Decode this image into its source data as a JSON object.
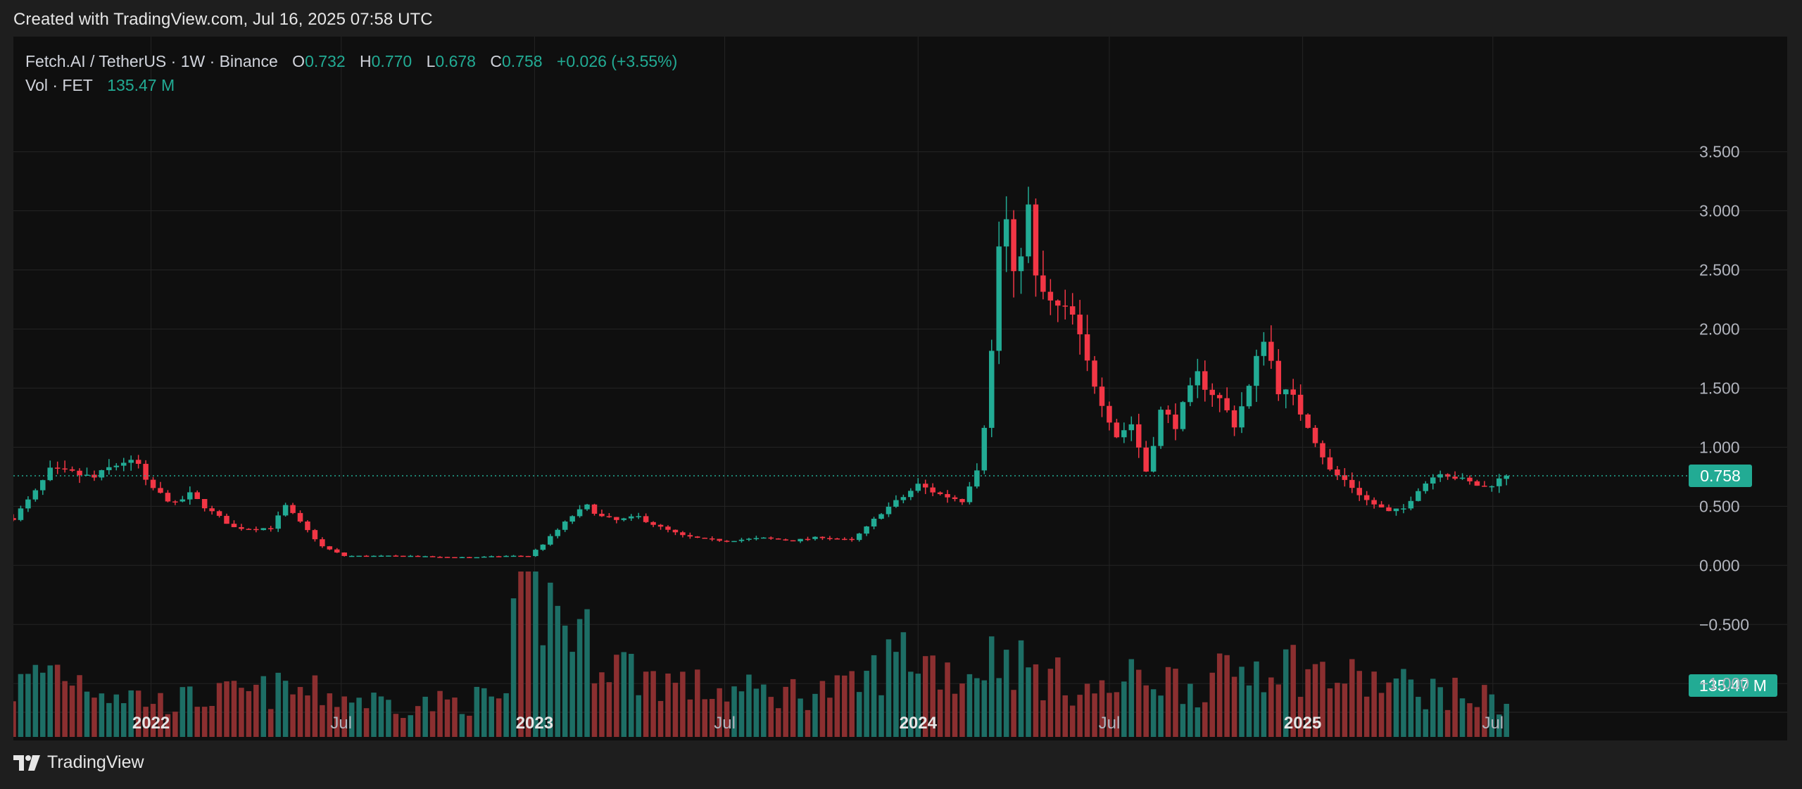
{
  "caption": "Created with TradingView.com, Jul 16, 2025 07:58 UTC",
  "footer_brand": "TradingView",
  "legend": {
    "symbol": "Fetch.AI / TetherUS · 1W · Binance",
    "o_label": "O",
    "o_value": "0.732",
    "h_label": "H",
    "h_value": "0.770",
    "l_label": "L",
    "l_value": "0.678",
    "c_label": "C",
    "c_value": "0.758",
    "change": "+0.026 (+3.55%)",
    "vol_label": "Vol · FET",
    "vol_value": "135.47 M"
  },
  "colors": {
    "up": "#22ab94",
    "down": "#f23645",
    "vol_up": "#1d6e65",
    "vol_down": "#8b2f30",
    "badge": "#22ab94"
  },
  "chart_data": {
    "type": "candlestick",
    "interval": "1W",
    "y_ticks": [
      3.5,
      3.0,
      2.5,
      2.0,
      1.5,
      1.0,
      0.5,
      0.0,
      -0.5,
      -1.0
    ],
    "y_tick_labels": [
      "3.500",
      "3.000",
      "2.500",
      "2.000",
      "1.500",
      "1.000",
      "0.500",
      "0.000",
      "−0.500",
      "−1.000"
    ],
    "ylim": [
      -1.35,
      3.95
    ],
    "x_tick_labels": [
      {
        "date": "2022-01-01",
        "label": "2022",
        "bold": true
      },
      {
        "date": "2022-07-01",
        "label": "Jul",
        "bold": false
      },
      {
        "date": "2023-01-01",
        "label": "2023",
        "bold": true
      },
      {
        "date": "2023-07-01",
        "label": "Jul",
        "bold": false
      },
      {
        "date": "2024-01-01",
        "label": "2024",
        "bold": true
      },
      {
        "date": "2024-07-01",
        "label": "Jul",
        "bold": false
      },
      {
        "date": "2025-01-01",
        "label": "2025",
        "bold": true
      },
      {
        "date": "2025-07-01",
        "label": "Jul",
        "bold": false
      }
    ],
    "xlim": [
      "2021-08-23",
      "2025-12-29"
    ],
    "last_price": 0.758,
    "last_price_label": "0.758",
    "last_volume_label": "135.47 M",
    "anchors": [
      [
        "2021-08-23",
        0.4
      ],
      [
        "2021-09-13",
        0.62
      ],
      [
        "2021-09-27",
        0.8
      ],
      [
        "2021-10-18",
        0.78
      ],
      [
        "2021-11-08",
        0.74
      ],
      [
        "2021-11-22",
        0.82
      ],
      [
        "2021-12-06",
        0.88
      ],
      [
        "2021-12-20",
        0.85
      ],
      [
        "2021-12-27",
        0.7
      ],
      [
        "2022-01-10",
        0.6
      ],
      [
        "2022-01-24",
        0.52
      ],
      [
        "2022-02-07",
        0.6
      ],
      [
        "2022-02-28",
        0.45
      ],
      [
        "2022-03-21",
        0.32
      ],
      [
        "2022-04-11",
        0.31
      ],
      [
        "2022-04-25",
        0.32
      ],
      [
        "2022-05-09",
        0.5
      ],
      [
        "2022-05-23",
        0.36
      ],
      [
        "2022-06-13",
        0.16
      ],
      [
        "2022-07-04",
        0.08
      ],
      [
        "2022-08-01",
        0.08
      ],
      [
        "2022-09-05",
        0.08
      ],
      [
        "2022-10-03",
        0.07
      ],
      [
        "2022-11-07",
        0.07
      ],
      [
        "2022-12-05",
        0.08
      ],
      [
        "2022-12-26",
        0.08
      ],
      [
        "2023-01-09",
        0.18
      ],
      [
        "2023-01-23",
        0.3
      ],
      [
        "2023-02-06",
        0.42
      ],
      [
        "2023-02-20",
        0.5
      ],
      [
        "2023-03-06",
        0.41
      ],
      [
        "2023-03-20",
        0.38
      ],
      [
        "2023-04-10",
        0.41
      ],
      [
        "2023-05-01",
        0.32
      ],
      [
        "2023-05-22",
        0.25
      ],
      [
        "2023-06-12",
        0.22
      ],
      [
        "2023-07-03",
        0.21
      ],
      [
        "2023-08-07",
        0.23
      ],
      [
        "2023-09-04",
        0.21
      ],
      [
        "2023-10-02",
        0.24
      ],
      [
        "2023-10-30",
        0.21
      ],
      [
        "2023-11-13",
        0.32
      ],
      [
        "2023-11-27",
        0.45
      ],
      [
        "2023-12-18",
        0.58
      ],
      [
        "2024-01-01",
        0.68
      ],
      [
        "2024-01-22",
        0.6
      ],
      [
        "2024-02-12",
        0.55
      ],
      [
        "2024-02-26",
        0.83
      ],
      [
        "2024-03-04",
        1.2
      ],
      [
        "2024-03-11",
        1.8
      ],
      [
        "2024-03-18",
        2.7
      ],
      [
        "2024-03-25",
        2.9
      ],
      [
        "2024-04-01",
        2.4
      ],
      [
        "2024-04-15",
        3.0
      ],
      [
        "2024-04-22",
        2.4
      ],
      [
        "2024-05-06",
        2.2
      ],
      [
        "2024-05-27",
        2.1
      ],
      [
        "2024-06-10",
        1.7
      ],
      [
        "2024-06-24",
        1.4
      ],
      [
        "2024-07-08",
        1.1
      ],
      [
        "2024-07-22",
        1.2
      ],
      [
        "2024-08-05",
        0.8
      ],
      [
        "2024-08-19",
        1.3
      ],
      [
        "2024-09-02",
        1.2
      ],
      [
        "2024-09-23",
        1.6
      ],
      [
        "2024-10-14",
        1.4
      ],
      [
        "2024-10-28",
        1.2
      ],
      [
        "2024-11-11",
        1.5
      ],
      [
        "2024-11-25",
        1.95
      ],
      [
        "2024-12-09",
        1.5
      ],
      [
        "2024-12-23",
        1.4
      ],
      [
        "2025-01-06",
        1.2
      ],
      [
        "2025-01-27",
        0.8
      ],
      [
        "2025-02-10",
        0.72
      ],
      [
        "2025-03-03",
        0.55
      ],
      [
        "2025-03-24",
        0.45
      ],
      [
        "2025-04-07",
        0.48
      ],
      [
        "2025-04-21",
        0.65
      ],
      [
        "2025-05-12",
        0.8
      ],
      [
        "2025-06-02",
        0.72
      ],
      [
        "2025-06-23",
        0.66
      ],
      [
        "2025-07-14",
        0.758
      ]
    ],
    "volume_anchors": [
      [
        "2021-08-23",
        0.3
      ],
      [
        "2021-09-27",
        0.45
      ],
      [
        "2021-11-22",
        0.3
      ],
      [
        "2022-01-10",
        0.22
      ],
      [
        "2022-05-09",
        0.3
      ],
      [
        "2022-09-05",
        0.2
      ],
      [
        "2022-12-05",
        0.25
      ],
      [
        "2022-12-19",
        1.0
      ],
      [
        "2023-01-30",
        0.75
      ],
      [
        "2023-02-20",
        0.6
      ],
      [
        "2023-04-10",
        0.4
      ],
      [
        "2023-06-12",
        0.3
      ],
      [
        "2023-08-07",
        0.28
      ],
      [
        "2023-10-30",
        0.3
      ],
      [
        "2023-12-18",
        0.55
      ],
      [
        "2024-02-12",
        0.38
      ],
      [
        "2024-03-18",
        0.55
      ],
      [
        "2024-04-22",
        0.4
      ],
      [
        "2024-06-24",
        0.28
      ],
      [
        "2024-08-05",
        0.4
      ],
      [
        "2024-09-23",
        0.32
      ],
      [
        "2024-12-02",
        0.5
      ],
      [
        "2025-01-27",
        0.38
      ],
      [
        "2025-04-07",
        0.32
      ],
      [
        "2025-07-14",
        0.22
      ]
    ]
  }
}
